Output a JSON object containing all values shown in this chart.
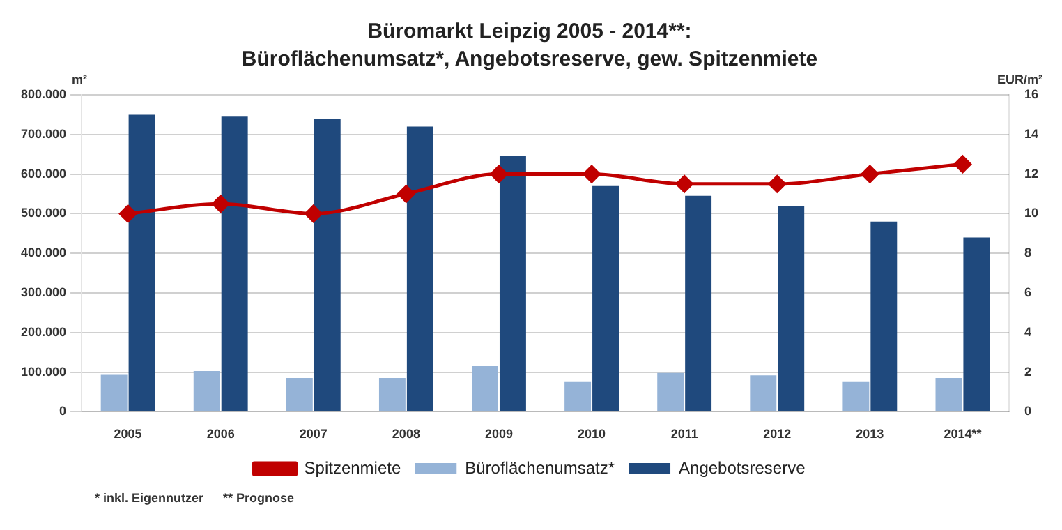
{
  "chart_data": {
    "type": "bar",
    "title": "Büromarkt Leipzig 2005 - 2014**:",
    "subtitle": "Büroflächenumsatz*, Angebotsreserve, gew. Spitzenmiete",
    "ylabel": "m²",
    "y2label": "EUR/m²",
    "categories": [
      "2005",
      "2006",
      "2007",
      "2008",
      "2009",
      "2010",
      "2011",
      "2012",
      "2013",
      "2014**"
    ],
    "series": [
      {
        "name": "Büroflächenumsatz*",
        "color": "#95b3d7",
        "values": [
          93000,
          103000,
          85000,
          85000,
          115000,
          75000,
          98000,
          92000,
          75000,
          85000
        ]
      },
      {
        "name": "Angebotsreserve",
        "color": "#1f497d",
        "values": [
          750000,
          745000,
          740000,
          720000,
          645000,
          570000,
          545000,
          520000,
          480000,
          440000
        ]
      },
      {
        "name": "Spitzenmiete",
        "type": "line",
        "axis": "y2",
        "color": "#c00000",
        "marker": "diamond",
        "values": [
          10,
          10.5,
          10,
          11,
          12,
          12,
          11.5,
          11.5,
          12,
          12.5
        ]
      }
    ],
    "ylim": [
      0,
      800000
    ],
    "yticks": [
      {
        "value": 0,
        "label": "0"
      },
      {
        "value": 100000,
        "label": "100.000"
      },
      {
        "value": 200000,
        "label": "200.000"
      },
      {
        "value": 300000,
        "label": "300.000"
      },
      {
        "value": 400000,
        "label": "400.000"
      },
      {
        "value": 500000,
        "label": "500.000"
      },
      {
        "value": 600000,
        "label": "600.000"
      },
      {
        "value": 700000,
        "label": "700.000"
      },
      {
        "value": 800000,
        "label": "800.000"
      }
    ],
    "y2lim": [
      0,
      16
    ],
    "y2ticks": [
      0,
      2,
      4,
      6,
      8,
      10,
      12,
      14,
      16
    ],
    "grid": "y",
    "legend": "bottom",
    "annotations": [
      "* inkl. Eigennutzer",
      "** Prognose"
    ]
  }
}
